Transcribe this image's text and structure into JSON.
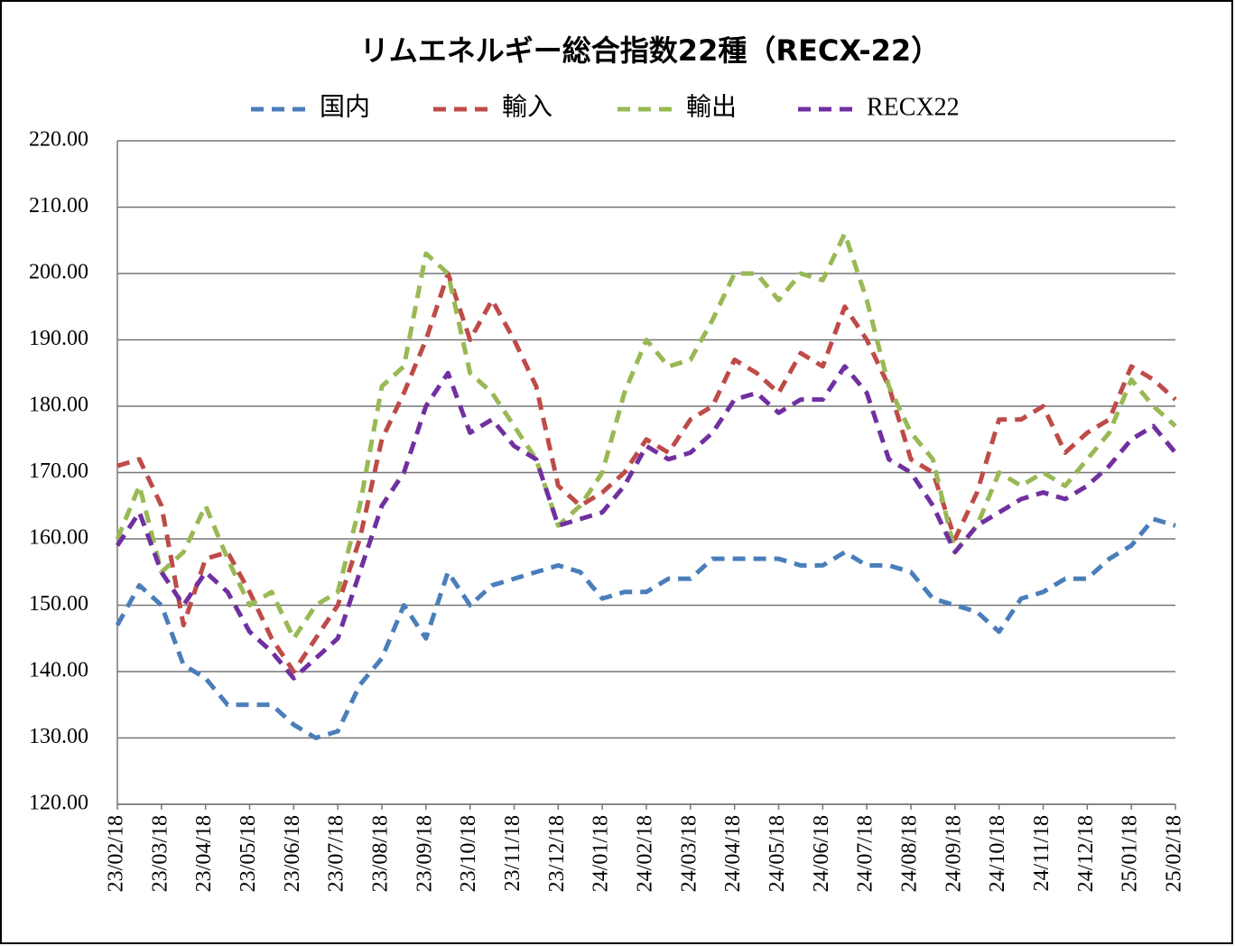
{
  "chart_data": {
    "type": "line",
    "title": "リムエネルギー総合指数22種（RECX-22）",
    "categories": [
      "23/02/18",
      null,
      "23/03/18",
      null,
      "23/04/18",
      null,
      "23/05/18",
      null,
      "23/06/18",
      null,
      "23/07/18",
      null,
      "23/08/18",
      null,
      "23/09/18",
      null,
      "23/10/18",
      null,
      "23/11/18",
      null,
      "23/12/18",
      null,
      "24/01/18",
      null,
      "24/02/18",
      null,
      "24/03/18",
      null,
      "24/04/18",
      null,
      "24/05/18",
      null,
      "24/06/18",
      null,
      "24/07/18",
      null,
      "24/08/18",
      null,
      "24/09/18",
      null,
      "24/10/18",
      null,
      "24/11/18",
      null,
      "24/12/18",
      null,
      "25/01/18",
      null,
      "25/02/18"
    ],
    "series": [
      {
        "name": "国内",
        "color": "#4a7ebb",
        "values": [
          147,
          153,
          150,
          141,
          139,
          135,
          135,
          135,
          132,
          130,
          131,
          138,
          142,
          150,
          145,
          155,
          150,
          153,
          154,
          155,
          156,
          155,
          151,
          152,
          152,
          154,
          154,
          157,
          157,
          157,
          157,
          156,
          156,
          158,
          156,
          156,
          155,
          151,
          150,
          149,
          146,
          151,
          152,
          154,
          154,
          157,
          159,
          163,
          162
        ]
      },
      {
        "name": "輸入",
        "color": "#be4b48",
        "values": [
          171,
          172,
          165,
          147,
          157,
          158,
          152,
          145,
          140,
          145,
          150,
          160,
          175,
          182,
          190,
          200,
          190,
          196,
          190,
          183,
          168,
          165,
          167,
          170,
          175,
          173,
          178,
          180,
          187,
          185,
          182,
          188,
          186,
          195,
          190,
          183,
          172,
          170,
          160,
          167,
          178,
          178,
          180,
          173,
          176,
          178,
          186,
          184,
          181
        ]
      },
      {
        "name": "輸出",
        "color": "#98b954",
        "values": [
          160,
          168,
          155,
          158,
          165,
          157,
          150,
          152,
          145,
          150,
          152,
          165,
          183,
          186,
          203,
          200,
          185,
          182,
          177,
          172,
          162,
          165,
          170,
          182,
          190,
          186,
          187,
          193,
          200,
          200,
          196,
          200,
          199,
          206,
          196,
          183,
          176,
          172,
          158,
          162,
          170,
          168,
          170,
          168,
          172,
          176,
          184,
          180,
          177
        ]
      },
      {
        "name": "RECX22",
        "color": "#7030a0",
        "values": [
          159,
          164,
          155,
          150,
          155,
          152,
          146,
          143,
          139,
          142,
          145,
          155,
          165,
          170,
          180,
          185,
          176,
          178,
          174,
          172,
          162,
          163,
          164,
          168,
          174,
          172,
          173,
          176,
          181,
          182,
          179,
          181,
          181,
          186,
          182,
          172,
          170,
          165,
          158,
          162,
          164,
          166,
          167,
          166,
          168,
          171,
          175,
          177,
          173
        ]
      }
    ],
    "ylim": [
      120,
      220
    ],
    "yticks": [
      {
        "value": 120,
        "label": "120.00"
      },
      {
        "value": 130,
        "label": "130.00"
      },
      {
        "value": 140,
        "label": "140.00"
      },
      {
        "value": 150,
        "label": "150.00"
      },
      {
        "value": 160,
        "label": "160.00"
      },
      {
        "value": 170,
        "label": "170.00"
      },
      {
        "value": 180,
        "label": "180.00"
      },
      {
        "value": 190,
        "label": "190.00"
      },
      {
        "value": 200,
        "label": "200.00"
      },
      {
        "value": 210,
        "label": "210.00"
      },
      {
        "value": 220,
        "label": "220.00"
      }
    ],
    "grid": true,
    "legend": "top"
  }
}
